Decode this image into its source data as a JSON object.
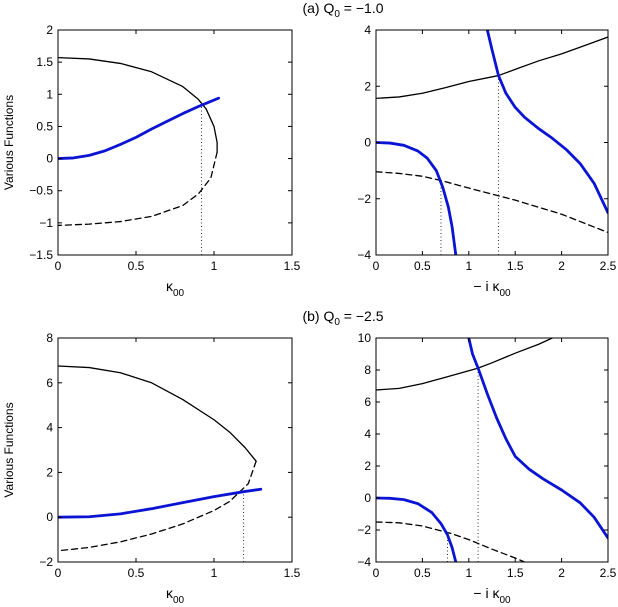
{
  "panel_titles": [
    {
      "prefix": "(a) Q",
      "sub": "0",
      "suffix": " = −1.0"
    },
    {
      "prefix": "(b) Q",
      "sub": "0",
      "suffix": " = −2.5"
    }
  ],
  "colors": {
    "black": "#000000",
    "blue": "#0a14d2"
  },
  "chart_data": [
    {
      "type": "line",
      "panel": "a-left",
      "xlabel": {
        "main": "κ",
        "sub": "00"
      },
      "ylabel": "Various Functions",
      "xlim": [
        0,
        1.5
      ],
      "ylim": [
        -1.5,
        2
      ],
      "xticks": [
        0,
        0.5,
        1,
        1.5
      ],
      "yticks": [
        -1.5,
        -1,
        -0.5,
        0,
        0.5,
        1,
        1.5,
        2
      ],
      "grid": false,
      "series": [
        {
          "style": "black-solid",
          "points": [
            [
              0,
              1.57
            ],
            [
              0.2,
              1.55
            ],
            [
              0.4,
              1.48
            ],
            [
              0.6,
              1.35
            ],
            [
              0.8,
              1.12
            ],
            [
              0.9,
              0.92
            ],
            [
              0.95,
              0.77
            ],
            [
              1.0,
              0.5
            ],
            [
              1.02,
              0.25
            ],
            [
              1.02,
              0.1
            ]
          ]
        },
        {
          "style": "black-dashed",
          "points": [
            [
              1.02,
              0.1
            ],
            [
              0.98,
              -0.3
            ],
            [
              0.9,
              -0.55
            ],
            [
              0.8,
              -0.73
            ],
            [
              0.6,
              -0.9
            ],
            [
              0.4,
              -0.98
            ],
            [
              0.2,
              -1.02
            ],
            [
              0,
              -1.04
            ]
          ]
        },
        {
          "style": "blue-thick",
          "points": [
            [
              0,
              0
            ],
            [
              0.1,
              0.01
            ],
            [
              0.2,
              0.05
            ],
            [
              0.3,
              0.12
            ],
            [
              0.4,
              0.22
            ],
            [
              0.5,
              0.33
            ],
            [
              0.6,
              0.46
            ],
            [
              0.7,
              0.58
            ],
            [
              0.8,
              0.7
            ],
            [
              0.9,
              0.81
            ],
            [
              1.0,
              0.91
            ],
            [
              1.03,
              0.94
            ]
          ]
        }
      ],
      "markers": [
        {
          "x": 0.92,
          "y_from": -1.5,
          "y_to": 0.85
        }
      ]
    },
    {
      "type": "line",
      "panel": "a-right",
      "xlabel": {
        "main": "− i κ",
        "sub": "00"
      },
      "ylabel": "",
      "xlim": [
        0,
        2.5
      ],
      "ylim": [
        -4,
        4
      ],
      "xticks": [
        0,
        0.5,
        1,
        1.5,
        2,
        2.5
      ],
      "yticks": [
        -4,
        -2,
        0,
        2,
        4
      ],
      "grid": false,
      "series": [
        {
          "style": "black-solid",
          "points": [
            [
              0,
              1.57
            ],
            [
              0.25,
              1.62
            ],
            [
              0.5,
              1.75
            ],
            [
              0.75,
              1.95
            ],
            [
              1.0,
              2.17
            ],
            [
              1.32,
              2.38
            ],
            [
              1.5,
              2.6
            ],
            [
              1.75,
              2.9
            ],
            [
              2.0,
              3.15
            ],
            [
              2.25,
              3.45
            ],
            [
              2.5,
              3.75
            ]
          ]
        },
        {
          "style": "black-dashed",
          "points": [
            [
              0,
              -1.04
            ],
            [
              0.25,
              -1.1
            ],
            [
              0.5,
              -1.2
            ],
            [
              0.7,
              -1.35
            ],
            [
              1.0,
              -1.62
            ],
            [
              1.5,
              -2.05
            ],
            [
              2.0,
              -2.55
            ],
            [
              2.5,
              -3.2
            ]
          ]
        },
        {
          "style": "blue-thick",
          "points": [
            [
              0,
              0
            ],
            [
              0.15,
              -0.02
            ],
            [
              0.3,
              -0.1
            ],
            [
              0.45,
              -0.3
            ],
            [
              0.55,
              -0.55
            ],
            [
              0.65,
              -1.0
            ],
            [
              0.72,
              -1.6
            ],
            [
              0.78,
              -2.3
            ],
            [
              0.82,
              -3.0
            ],
            [
              0.86,
              -4.0
            ]
          ]
        },
        {
          "style": "blue-thick",
          "points": [
            [
              1.2,
              4.0
            ],
            [
              1.25,
              3.3
            ],
            [
              1.32,
              2.38
            ],
            [
              1.4,
              1.75
            ],
            [
              1.5,
              1.25
            ],
            [
              1.6,
              0.9
            ],
            [
              1.75,
              0.5
            ],
            [
              1.9,
              0.15
            ],
            [
              2.05,
              -0.25
            ],
            [
              2.2,
              -0.75
            ],
            [
              2.35,
              -1.45
            ],
            [
              2.5,
              -2.5
            ]
          ]
        }
      ],
      "markers": [
        {
          "x": 0.7,
          "y_from": -4,
          "y_to": -1.4
        },
        {
          "x": 1.32,
          "y_from": -4,
          "y_to": 2.38
        }
      ]
    },
    {
      "type": "line",
      "panel": "b-left",
      "xlabel": {
        "main": "κ",
        "sub": "00"
      },
      "ylabel": "Various Functions",
      "xlim": [
        0,
        1.5
      ],
      "ylim": [
        -2,
        8
      ],
      "xticks": [
        0,
        0.5,
        1,
        1.5
      ],
      "yticks": [
        -2,
        0,
        2,
        4,
        6,
        8
      ],
      "grid": false,
      "series": [
        {
          "style": "black-solid",
          "points": [
            [
              0,
              6.75
            ],
            [
              0.2,
              6.68
            ],
            [
              0.4,
              6.45
            ],
            [
              0.6,
              6.0
            ],
            [
              0.8,
              5.25
            ],
            [
              1.0,
              4.35
            ],
            [
              1.1,
              3.8
            ],
            [
              1.2,
              3.1
            ],
            [
              1.27,
              2.5
            ]
          ]
        },
        {
          "style": "black-dashed",
          "points": [
            [
              1.27,
              2.5
            ],
            [
              1.22,
              1.5
            ],
            [
              1.1,
              0.7
            ],
            [
              1.0,
              0.3
            ],
            [
              0.8,
              -0.3
            ],
            [
              0.6,
              -0.75
            ],
            [
              0.4,
              -1.1
            ],
            [
              0.2,
              -1.35
            ],
            [
              0,
              -1.5
            ]
          ]
        },
        {
          "style": "blue-thick",
          "points": [
            [
              0,
              0
            ],
            [
              0.2,
              0.02
            ],
            [
              0.4,
              0.15
            ],
            [
              0.6,
              0.38
            ],
            [
              0.8,
              0.65
            ],
            [
              1.0,
              0.92
            ],
            [
              1.2,
              1.15
            ],
            [
              1.3,
              1.25
            ]
          ]
        }
      ],
      "markers": [
        {
          "x": 1.19,
          "y_from": -2,
          "y_to": 1.15
        }
      ]
    },
    {
      "type": "line",
      "panel": "b-right",
      "xlabel": {
        "main": "− i κ",
        "sub": "00"
      },
      "ylabel": "",
      "xlim": [
        0,
        2.5
      ],
      "ylim": [
        -4,
        10
      ],
      "xticks": [
        0,
        0.5,
        1,
        1.5,
        2,
        2.5
      ],
      "yticks": [
        -4,
        -2,
        0,
        2,
        4,
        6,
        8,
        10
      ],
      "grid": false,
      "series": [
        {
          "style": "black-solid",
          "points": [
            [
              0,
              6.75
            ],
            [
              0.25,
              6.85
            ],
            [
              0.5,
              7.15
            ],
            [
              0.75,
              7.55
            ],
            [
              1.0,
              7.95
            ],
            [
              1.1,
              8.12
            ],
            [
              1.25,
              8.45
            ],
            [
              1.5,
              9.05
            ],
            [
              1.75,
              9.6
            ],
            [
              1.9,
              10.0
            ]
          ]
        },
        {
          "style": "black-dashed",
          "points": [
            [
              0,
              -1.5
            ],
            [
              0.25,
              -1.55
            ],
            [
              0.5,
              -1.75
            ],
            [
              0.8,
              -2.2
            ],
            [
              1.0,
              -2.6
            ],
            [
              1.25,
              -3.2
            ],
            [
              1.5,
              -3.75
            ],
            [
              1.6,
              -4.0
            ]
          ]
        },
        {
          "style": "blue-thick",
          "points": [
            [
              0,
              0
            ],
            [
              0.15,
              -0.02
            ],
            [
              0.3,
              -0.1
            ],
            [
              0.45,
              -0.35
            ],
            [
              0.6,
              -0.9
            ],
            [
              0.7,
              -1.6
            ],
            [
              0.77,
              -2.3
            ],
            [
              0.82,
              -3.1
            ],
            [
              0.86,
              -4.0
            ]
          ]
        },
        {
          "style": "blue-thick",
          "points": [
            [
              1.0,
              10.0
            ],
            [
              1.04,
              9.0
            ],
            [
              1.1,
              8.12
            ],
            [
              1.2,
              6.5
            ],
            [
              1.3,
              5.0
            ],
            [
              1.4,
              3.7
            ],
            [
              1.5,
              2.6
            ],
            [
              1.65,
              1.8
            ],
            [
              1.8,
              1.2
            ],
            [
              2.0,
              0.5
            ],
            [
              2.2,
              -0.3
            ],
            [
              2.35,
              -1.2
            ],
            [
              2.5,
              -2.5
            ]
          ]
        }
      ],
      "markers": [
        {
          "x": 0.77,
          "y_from": -4,
          "y_to": -2.3
        },
        {
          "x": 1.1,
          "y_from": -4,
          "y_to": 8.12
        }
      ]
    }
  ]
}
